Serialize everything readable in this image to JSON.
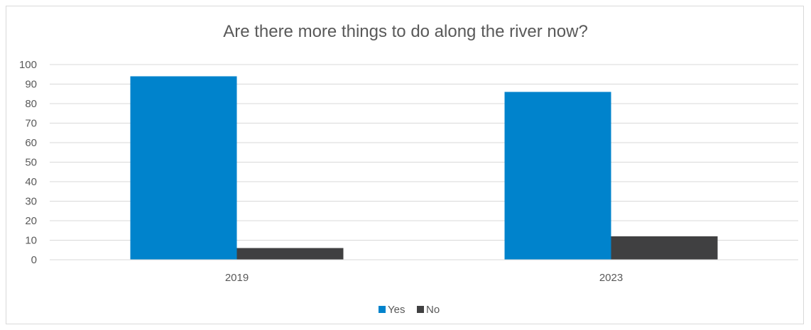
{
  "chart_data": {
    "type": "bar",
    "title": "Are there more things to do along the river now?",
    "categories": [
      "2019",
      "2023"
    ],
    "series": [
      {
        "name": "Yes",
        "values": [
          94,
          86
        ],
        "color": "#0083CC"
      },
      {
        "name": "No",
        "values": [
          6,
          12
        ],
        "color": "#404041"
      }
    ],
    "ylim": [
      0,
      100
    ],
    "yticks": [
      0,
      10,
      20,
      30,
      40,
      50,
      60,
      70,
      80,
      90,
      100
    ],
    "grid": true,
    "legend": "bottom-center",
    "xlabel": "",
    "ylabel": ""
  }
}
